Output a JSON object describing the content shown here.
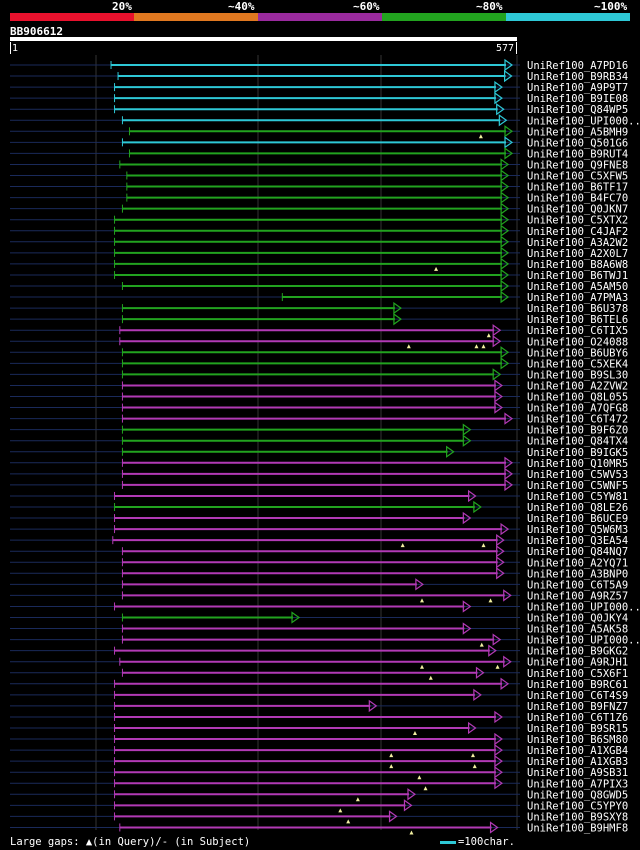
{
  "legend": {
    "segments": [
      {
        "color": "#e8112d"
      },
      {
        "color": "#e07820"
      },
      {
        "color": "#9a2a9e"
      },
      {
        "color": "#22a31f"
      },
      {
        "color": "#2ec8d6"
      }
    ],
    "labels": [
      "20%",
      "~40%",
      "~60%",
      "~80%",
      "~100%"
    ]
  },
  "query": {
    "name": "BB906612",
    "start": "1",
    "end": "577",
    "length": 577
  },
  "footer": {
    "gaps_text": "Large gaps: ▲(in Query)/- (in Subject)",
    "scale_text": "=100char."
  },
  "colors": {
    "cyan": "#2ec8d6",
    "green": "#22a31f",
    "magenta": "#b23ab5",
    "background_line": "#1a2a5a"
  },
  "chart_data": {
    "type": "alignment",
    "hits": [
      {
        "name": "UniRef100_A7PD16",
        "start": 116,
        "end": 577,
        "color": "cyan",
        "gaps": []
      },
      {
        "name": "UniRef100_B9RB34",
        "start": 124,
        "end": 572,
        "color": "cyan",
        "gaps": []
      },
      {
        "name": "UniRef100_A9P9T7",
        "start": 120,
        "end": 561,
        "color": "cyan",
        "gaps": []
      },
      {
        "name": "UniRef100_B9IE08",
        "start": 120,
        "end": 561,
        "color": "cyan",
        "gaps": []
      },
      {
        "name": "UniRef100_Q84WP5",
        "start": 120,
        "end": 563,
        "color": "cyan",
        "gaps": []
      },
      {
        "name": "UniRef100_UPI000..",
        "start": 129,
        "end": 566,
        "color": "cyan",
        "gaps": []
      },
      {
        "name": "UniRef100_A5BMH9",
        "start": 137,
        "end": 577,
        "color": "green",
        "gaps": [
          537
        ]
      },
      {
        "name": "UniRef100_Q501G6",
        "start": 129,
        "end": 582,
        "color": "cyan",
        "gaps": []
      },
      {
        "name": "UniRef100_B9RUT4",
        "start": 137,
        "end": 582,
        "color": "green",
        "gaps": []
      },
      {
        "name": "UniRef100_Q9FNE8",
        "start": 126,
        "end": 568,
        "color": "green",
        "gaps": []
      },
      {
        "name": "UniRef100_C5XFW5",
        "start": 134,
        "end": 568,
        "color": "green",
        "gaps": []
      },
      {
        "name": "UniRef100_B6TF17",
        "start": 134,
        "end": 568,
        "color": "green",
        "gaps": []
      },
      {
        "name": "UniRef100_B4FC70",
        "start": 134,
        "end": 568,
        "color": "green",
        "gaps": []
      },
      {
        "name": "UniRef100_Q0JKN7",
        "start": 129,
        "end": 568,
        "color": "green",
        "gaps": []
      },
      {
        "name": "UniRef100_C5XTX2",
        "start": 120,
        "end": 568,
        "color": "green",
        "gaps": []
      },
      {
        "name": "UniRef100_C4JAF2",
        "start": 120,
        "end": 568,
        "color": "green",
        "gaps": []
      },
      {
        "name": "UniRef100_A3A2W2",
        "start": 120,
        "end": 568,
        "color": "green",
        "gaps": []
      },
      {
        "name": "UniRef100_A2X0L7",
        "start": 120,
        "end": 568,
        "color": "green",
        "gaps": []
      },
      {
        "name": "UniRef100_B8A6W8",
        "start": 120,
        "end": 568,
        "color": "green",
        "gaps": [
          486
        ]
      },
      {
        "name": "UniRef100_B6TWJ1",
        "start": 120,
        "end": 568,
        "color": "green",
        "gaps": []
      },
      {
        "name": "UniRef100_A5AM50",
        "start": 129,
        "end": 568,
        "color": "green",
        "gaps": []
      },
      {
        "name": "UniRef100_A7PMA3",
        "start": 311,
        "end": 568,
        "color": "green",
        "gaps": []
      },
      {
        "name": "UniRef100_B6U378",
        "start": 129,
        "end": 446,
        "color": "green",
        "gaps": []
      },
      {
        "name": "UniRef100_B6TEL6",
        "start": 129,
        "end": 446,
        "color": "green",
        "gaps": []
      },
      {
        "name": "UniRef100_C6TIX5",
        "start": 126,
        "end": 559,
        "color": "magenta",
        "gaps": [
          546
        ]
      },
      {
        "name": "UniRef100_O24088",
        "start": 126,
        "end": 559,
        "color": "magenta",
        "gaps": [
          455,
          532,
          540
        ]
      },
      {
        "name": "UniRef100_B6UBY6",
        "start": 129,
        "end": 568,
        "color": "green",
        "gaps": []
      },
      {
        "name": "UniRef100_C5XEK4",
        "start": 129,
        "end": 568,
        "color": "green",
        "gaps": []
      },
      {
        "name": "UniRef100_B9SL30",
        "start": 129,
        "end": 559,
        "color": "green",
        "gaps": []
      },
      {
        "name": "UniRef100_A2ZVW2",
        "start": 129,
        "end": 561,
        "color": "magenta",
        "gaps": []
      },
      {
        "name": "UniRef100_Q8L055",
        "start": 129,
        "end": 561,
        "color": "magenta",
        "gaps": []
      },
      {
        "name": "UniRef100_A7QFG8",
        "start": 129,
        "end": 561,
        "color": "magenta",
        "gaps": []
      },
      {
        "name": "UniRef100_C6T472",
        "start": 129,
        "end": 577,
        "color": "magenta",
        "gaps": []
      },
      {
        "name": "UniRef100_B9F6Z0",
        "start": 129,
        "end": 525,
        "color": "green",
        "gaps": []
      },
      {
        "name": "UniRef100_Q84TX4",
        "start": 129,
        "end": 525,
        "color": "green",
        "gaps": []
      },
      {
        "name": "UniRef100_B9IGK5",
        "start": 129,
        "end": 506,
        "color": "green",
        "gaps": []
      },
      {
        "name": "UniRef100_Q10MR5",
        "start": 129,
        "end": 577,
        "color": "magenta",
        "gaps": []
      },
      {
        "name": "UniRef100_C5WV53",
        "start": 129,
        "end": 582,
        "color": "magenta",
        "gaps": []
      },
      {
        "name": "UniRef100_C5WNF5",
        "start": 129,
        "end": 577,
        "color": "magenta",
        "gaps": []
      },
      {
        "name": "UniRef100_C5YW81",
        "start": 120,
        "end": 531,
        "color": "magenta",
        "gaps": []
      },
      {
        "name": "UniRef100_Q8LE26",
        "start": 120,
        "end": 537,
        "color": "green",
        "gaps": []
      },
      {
        "name": "UniRef100_B6UCE9",
        "start": 120,
        "end": 525,
        "color": "magenta",
        "gaps": []
      },
      {
        "name": "UniRef100_Q5W6M3",
        "start": 120,
        "end": 568,
        "color": "magenta",
        "gaps": []
      },
      {
        "name": "UniRef100_Q3EA54",
        "start": 118,
        "end": 563,
        "color": "magenta",
        "gaps": [
          448,
          540
        ]
      },
      {
        "name": "UniRef100_Q84NQ7",
        "start": 129,
        "end": 563,
        "color": "magenta",
        "gaps": []
      },
      {
        "name": "UniRef100_A2YQ71",
        "start": 129,
        "end": 563,
        "color": "magenta",
        "gaps": []
      },
      {
        "name": "UniRef100_A3BNP0",
        "start": 129,
        "end": 563,
        "color": "magenta",
        "gaps": []
      },
      {
        "name": "UniRef100_C6T5A9",
        "start": 129,
        "end": 471,
        "color": "magenta",
        "gaps": []
      },
      {
        "name": "UniRef100_A9RZ57",
        "start": 129,
        "end": 571,
        "color": "magenta",
        "gaps": [
          548,
          470
        ]
      },
      {
        "name": "UniRef100_UPI000..",
        "start": 120,
        "end": 525,
        "color": "magenta",
        "gaps": []
      },
      {
        "name": "UniRef100_Q0JKY4",
        "start": 129,
        "end": 330,
        "color": "green",
        "gaps": []
      },
      {
        "name": "UniRef100_A5AK58",
        "start": 129,
        "end": 525,
        "color": "magenta",
        "gaps": []
      },
      {
        "name": "UniRef100_UPI000..",
        "start": 129,
        "end": 559,
        "color": "magenta",
        "gaps": [
          538
        ]
      },
      {
        "name": "UniRef100_B9GKG2",
        "start": 120,
        "end": 554,
        "color": "magenta",
        "gaps": []
      },
      {
        "name": "UniRef100_A9RJH1",
        "start": 126,
        "end": 571,
        "color": "magenta",
        "gaps": [
          470,
          556
        ]
      },
      {
        "name": "UniRef100_C5X6F1",
        "start": 129,
        "end": 540,
        "color": "magenta",
        "gaps": [
          480
        ]
      },
      {
        "name": "UniRef100_B9RC61",
        "start": 120,
        "end": 568,
        "color": "magenta",
        "gaps": []
      },
      {
        "name": "UniRef100_C6T4S9",
        "start": 120,
        "end": 537,
        "color": "magenta",
        "gaps": []
      },
      {
        "name": "UniRef100_B9FNZ7",
        "start": 120,
        "end": 418,
        "color": "magenta",
        "gaps": []
      },
      {
        "name": "UniRef100_C6T1Z6",
        "start": 120,
        "end": 561,
        "color": "magenta",
        "gaps": []
      },
      {
        "name": "UniRef100_B9SR15",
        "start": 120,
        "end": 531,
        "color": "magenta",
        "gaps": [
          462
        ]
      },
      {
        "name": "UniRef100_B6SM80",
        "start": 120,
        "end": 561,
        "color": "magenta",
        "gaps": []
      },
      {
        "name": "UniRef100_A1XGB4",
        "start": 120,
        "end": 561,
        "color": "magenta",
        "gaps": [
          435,
          528
        ]
      },
      {
        "name": "UniRef100_A1XGB3",
        "start": 120,
        "end": 561,
        "color": "magenta",
        "gaps": [
          435,
          530
        ]
      },
      {
        "name": "UniRef100_A9SB31",
        "start": 120,
        "end": 561,
        "color": "magenta",
        "gaps": [
          467
        ]
      },
      {
        "name": "UniRef100_A7PIX3",
        "start": 120,
        "end": 561,
        "color": "magenta",
        "gaps": [
          474
        ]
      },
      {
        "name": "UniRef100_Q8GWD5",
        "start": 120,
        "end": 462,
        "color": "magenta",
        "gaps": [
          397
        ]
      },
      {
        "name": "UniRef100_C5YPY0",
        "start": 120,
        "end": 458,
        "color": "magenta",
        "gaps": [
          377
        ]
      },
      {
        "name": "UniRef100_B9SXY8",
        "start": 120,
        "end": 441,
        "color": "magenta",
        "gaps": [
          386
        ]
      },
      {
        "name": "UniRef100_B9HMF8",
        "start": 126,
        "end": 556,
        "color": "magenta",
        "gaps": [
          458
        ]
      }
    ]
  }
}
